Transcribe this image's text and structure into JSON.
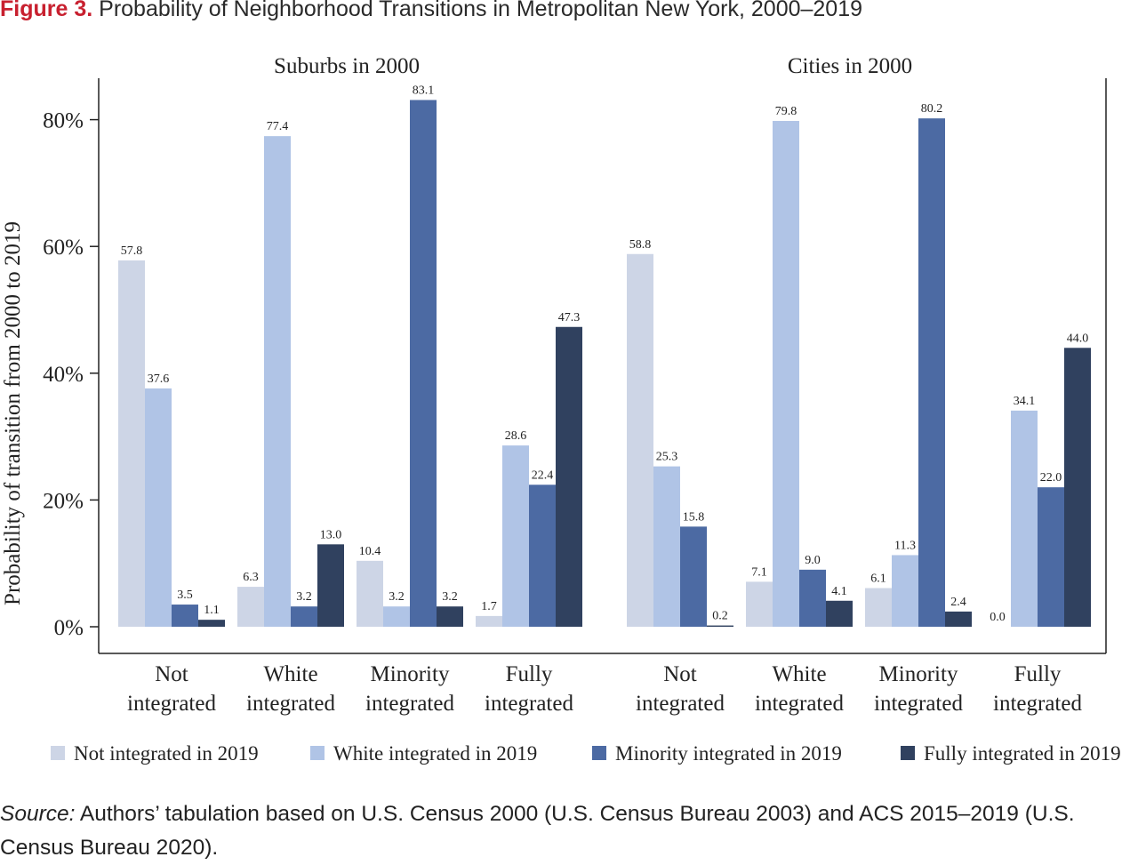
{
  "figure": {
    "number": "Figure 3.",
    "title": "Probability of Neighborhood Transitions in Metropolitan New York, 2000–2019"
  },
  "source": {
    "label": "Source:",
    "text": "Authors’ tabulation based on U.S. Census 2000 (U.S. Census Bureau 2003) and ACS 2015–2019 (U.S. Census Bureau 2020)."
  },
  "chart_data": {
    "type": "bar",
    "ylabel": "Probability of transition from 2000 to 2019",
    "ylim": [
      0,
      87
    ],
    "yticks": [
      0,
      20,
      40,
      60,
      80
    ],
    "ytick_labels": [
      "0%",
      "20%",
      "40%",
      "60%",
      "80%"
    ],
    "grid": false,
    "legend_position": "bottom",
    "categories": [
      "Not integrated",
      "White integrated",
      "Minority integrated",
      "Fully integrated"
    ],
    "category_lines": [
      [
        "Not",
        "integrated"
      ],
      [
        "White",
        "integrated"
      ],
      [
        "Minority",
        "integrated"
      ],
      [
        "Fully",
        "integrated"
      ]
    ],
    "series_colors": [
      "#cdd5e6",
      "#b0c4e6",
      "#4c6aa3",
      "#30415f"
    ],
    "legend": [
      "Not integrated in 2019",
      "White integrated in 2019",
      "Minority integrated in 2019",
      "Fully integrated in 2019"
    ],
    "panels": [
      {
        "title": "Suburbs in 2000",
        "series": [
          {
            "name": "Not integrated in 2019",
            "values": [
              57.8,
              6.3,
              10.4,
              1.7
            ]
          },
          {
            "name": "White integrated in 2019",
            "values": [
              37.6,
              77.4,
              3.2,
              28.6
            ]
          },
          {
            "name": "Minority integrated in 2019",
            "values": [
              3.5,
              3.2,
              83.1,
              22.4
            ]
          },
          {
            "name": "Fully integrated in 2019",
            "values": [
              1.1,
              13.0,
              3.2,
              47.3
            ]
          }
        ]
      },
      {
        "title": "Cities in 2000",
        "series": [
          {
            "name": "Not integrated in 2019",
            "values": [
              58.8,
              7.1,
              6.1,
              0.0
            ]
          },
          {
            "name": "White integrated in 2019",
            "values": [
              25.3,
              79.8,
              11.3,
              34.1
            ]
          },
          {
            "name": "Minority integrated in 2019",
            "values": [
              15.8,
              9.0,
              80.2,
              22.0
            ]
          },
          {
            "name": "Fully integrated in 2019",
            "values": [
              0.2,
              4.1,
              2.4,
              44.0
            ]
          }
        ]
      }
    ]
  }
}
